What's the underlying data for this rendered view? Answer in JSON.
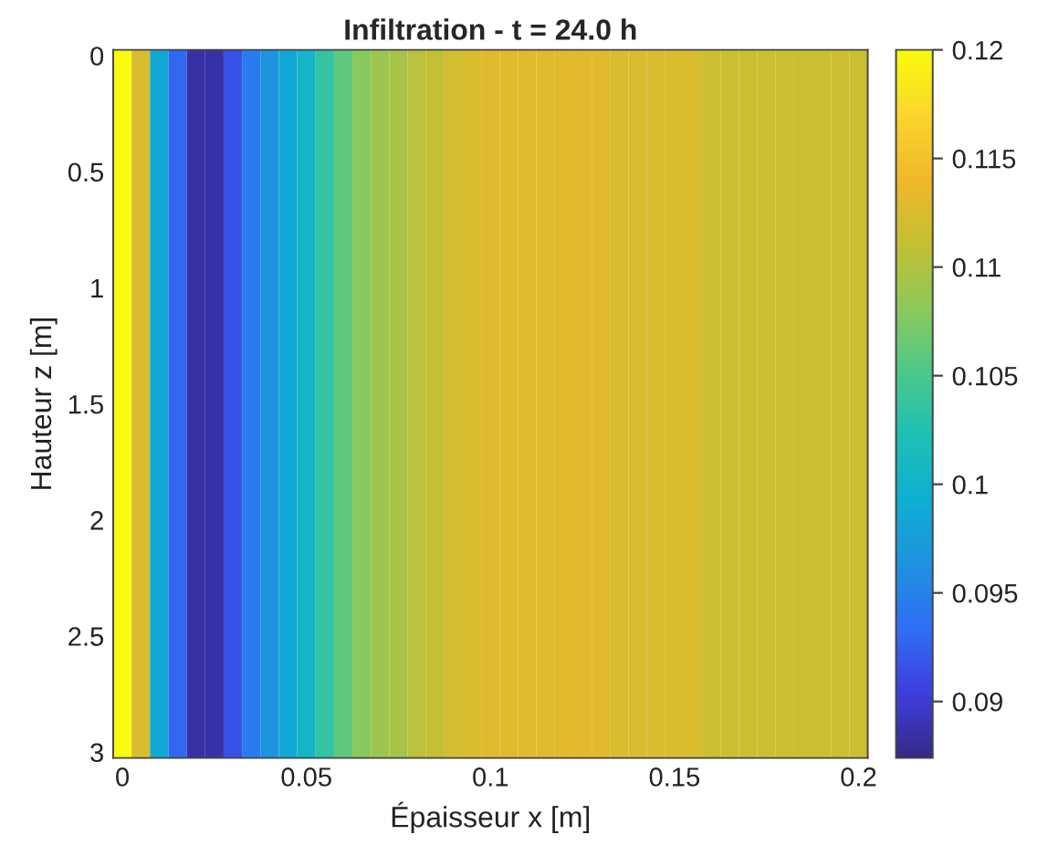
{
  "chart_data": {
    "type": "heatmap",
    "title": "Infiltration - t = 24.0 h",
    "xlabel": "Épaisseur x [m]",
    "ylabel": "Hauteur z [m]",
    "x": [
      0,
      0.005,
      0.01,
      0.015,
      0.02,
      0.025,
      0.03,
      0.035,
      0.04,
      0.045,
      0.05,
      0.055,
      0.06,
      0.065,
      0.07,
      0.075,
      0.08,
      0.085,
      0.09,
      0.095,
      0.1,
      0.105,
      0.11,
      0.115,
      0.12,
      0.125,
      0.13,
      0.135,
      0.14,
      0.145,
      0.15,
      0.155,
      0.16,
      0.165,
      0.17,
      0.175,
      0.18,
      0.185,
      0.19,
      0.195,
      0.2
    ],
    "cells": [
      [
        0.12,
        0.1125,
        0.0985,
        0.093,
        0.0885,
        0.0885,
        0.0915,
        0.0945,
        0.0965,
        0.0985,
        0.1005,
        0.1035,
        0.106,
        0.108,
        0.109,
        0.1095,
        0.1105,
        0.111,
        0.112,
        0.1125,
        0.113,
        0.113,
        0.113,
        0.113,
        0.113,
        0.113,
        0.113,
        0.1125,
        0.1125,
        0.1125,
        0.1125,
        0.1125,
        0.1115,
        0.1115,
        0.1115,
        0.1115,
        0.1115,
        0.1115,
        0.1115,
        0.1115,
        0.1115
      ]
    ],
    "xlim": [
      -0.0025,
      0.2025
    ],
    "ylim": [
      3.025,
      -0.025
    ],
    "xticks": [
      0,
      0.05,
      0.1,
      0.15,
      0.2
    ],
    "yticks": [
      0,
      0.5,
      1,
      1.5,
      2,
      2.5,
      3
    ],
    "clim": [
      0.0874,
      0.12
    ],
    "cticks": [
      0.09,
      0.095,
      0.1,
      0.105,
      0.11,
      0.115,
      0.12
    ]
  }
}
